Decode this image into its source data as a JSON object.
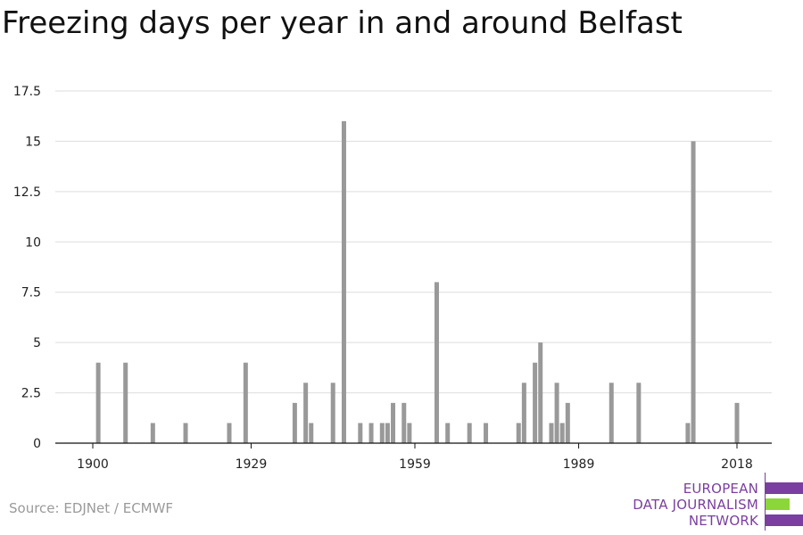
{
  "chart_data": {
    "type": "bar",
    "title": "Freezing days per year in and around Belfast",
    "xlabel": "",
    "ylabel": "",
    "x_ticks": [
      "1900",
      "1929",
      "1959",
      "1989",
      "2018"
    ],
    "y_ticks": [
      "0",
      "2.5",
      "5",
      "7.5",
      "10",
      "12.5",
      "15",
      "17.5"
    ],
    "ylim": [
      0,
      17.5
    ],
    "xlim": [
      1894,
      2024
    ],
    "grid": true,
    "bar_color": "#999999",
    "bars": [
      {
        "year": 1901,
        "value": 4
      },
      {
        "year": 1906,
        "value": 4
      },
      {
        "year": 1911,
        "value": 1
      },
      {
        "year": 1917,
        "value": 1
      },
      {
        "year": 1925,
        "value": 1
      },
      {
        "year": 1928,
        "value": 4
      },
      {
        "year": 1937,
        "value": 2
      },
      {
        "year": 1939,
        "value": 3
      },
      {
        "year": 1940,
        "value": 1
      },
      {
        "year": 1944,
        "value": 3
      },
      {
        "year": 1946,
        "value": 16
      },
      {
        "year": 1949,
        "value": 1
      },
      {
        "year": 1951,
        "value": 1
      },
      {
        "year": 1953,
        "value": 1
      },
      {
        "year": 1954,
        "value": 1
      },
      {
        "year": 1955,
        "value": 2
      },
      {
        "year": 1957,
        "value": 2
      },
      {
        "year": 1958,
        "value": 1
      },
      {
        "year": 1963,
        "value": 8
      },
      {
        "year": 1965,
        "value": 1
      },
      {
        "year": 1969,
        "value": 1
      },
      {
        "year": 1972,
        "value": 1
      },
      {
        "year": 1978,
        "value": 1
      },
      {
        "year": 1979,
        "value": 3
      },
      {
        "year": 1981,
        "value": 4
      },
      {
        "year": 1982,
        "value": 5
      },
      {
        "year": 1984,
        "value": 1
      },
      {
        "year": 1985,
        "value": 3
      },
      {
        "year": 1986,
        "value": 1
      },
      {
        "year": 1987,
        "value": 2
      },
      {
        "year": 1995,
        "value": 3
      },
      {
        "year": 2000,
        "value": 3
      },
      {
        "year": 2009,
        "value": 1
      },
      {
        "year": 2010,
        "value": 15
      },
      {
        "year": 2018,
        "value": 2
      }
    ]
  },
  "footer": {
    "source": "Source: EDJNet / ECMWF"
  },
  "logo": {
    "line1": "EUROPEAN",
    "line2": "DATA JOURNALISM",
    "line3": "NETWORK",
    "purple": "#7a3fa0",
    "green": "#8dd63a"
  }
}
